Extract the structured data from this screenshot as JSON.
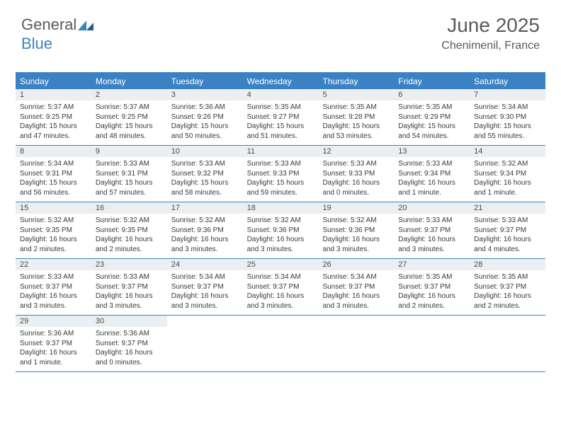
{
  "brand": {
    "part1": "General",
    "part2": "Blue"
  },
  "title": "June 2025",
  "location": "Chenimenil, France",
  "colors": {
    "accent": "#3b82c4",
    "header_bg": "#3b82c4",
    "header_text": "#ffffff",
    "daynum_bg": "#eceff1",
    "text": "#3a3a3a",
    "title_text": "#5a5a5a",
    "page_bg": "#ffffff"
  },
  "typography": {
    "title_fontsize": 28,
    "location_fontsize": 16,
    "dayheader_fontsize": 12,
    "daynum_fontsize": 11,
    "body_fontsize": 10
  },
  "day_names": [
    "Sunday",
    "Monday",
    "Tuesday",
    "Wednesday",
    "Thursday",
    "Friday",
    "Saturday"
  ],
  "weeks": [
    [
      {
        "n": "1",
        "sr": "Sunrise: 5:37 AM",
        "ss": "Sunset: 9:25 PM",
        "dl": "Daylight: 15 hours and 47 minutes."
      },
      {
        "n": "2",
        "sr": "Sunrise: 5:37 AM",
        "ss": "Sunset: 9:25 PM",
        "dl": "Daylight: 15 hours and 48 minutes."
      },
      {
        "n": "3",
        "sr": "Sunrise: 5:36 AM",
        "ss": "Sunset: 9:26 PM",
        "dl": "Daylight: 15 hours and 50 minutes."
      },
      {
        "n": "4",
        "sr": "Sunrise: 5:35 AM",
        "ss": "Sunset: 9:27 PM",
        "dl": "Daylight: 15 hours and 51 minutes."
      },
      {
        "n": "5",
        "sr": "Sunrise: 5:35 AM",
        "ss": "Sunset: 9:28 PM",
        "dl": "Daylight: 15 hours and 53 minutes."
      },
      {
        "n": "6",
        "sr": "Sunrise: 5:35 AM",
        "ss": "Sunset: 9:29 PM",
        "dl": "Daylight: 15 hours and 54 minutes."
      },
      {
        "n": "7",
        "sr": "Sunrise: 5:34 AM",
        "ss": "Sunset: 9:30 PM",
        "dl": "Daylight: 15 hours and 55 minutes."
      }
    ],
    [
      {
        "n": "8",
        "sr": "Sunrise: 5:34 AM",
        "ss": "Sunset: 9:31 PM",
        "dl": "Daylight: 15 hours and 56 minutes."
      },
      {
        "n": "9",
        "sr": "Sunrise: 5:33 AM",
        "ss": "Sunset: 9:31 PM",
        "dl": "Daylight: 15 hours and 57 minutes."
      },
      {
        "n": "10",
        "sr": "Sunrise: 5:33 AM",
        "ss": "Sunset: 9:32 PM",
        "dl": "Daylight: 15 hours and 58 minutes."
      },
      {
        "n": "11",
        "sr": "Sunrise: 5:33 AM",
        "ss": "Sunset: 9:33 PM",
        "dl": "Daylight: 15 hours and 59 minutes."
      },
      {
        "n": "12",
        "sr": "Sunrise: 5:33 AM",
        "ss": "Sunset: 9:33 PM",
        "dl": "Daylight: 16 hours and 0 minutes."
      },
      {
        "n": "13",
        "sr": "Sunrise: 5:33 AM",
        "ss": "Sunset: 9:34 PM",
        "dl": "Daylight: 16 hours and 1 minute."
      },
      {
        "n": "14",
        "sr": "Sunrise: 5:32 AM",
        "ss": "Sunset: 9:34 PM",
        "dl": "Daylight: 16 hours and 1 minute."
      }
    ],
    [
      {
        "n": "15",
        "sr": "Sunrise: 5:32 AM",
        "ss": "Sunset: 9:35 PM",
        "dl": "Daylight: 16 hours and 2 minutes."
      },
      {
        "n": "16",
        "sr": "Sunrise: 5:32 AM",
        "ss": "Sunset: 9:35 PM",
        "dl": "Daylight: 16 hours and 2 minutes."
      },
      {
        "n": "17",
        "sr": "Sunrise: 5:32 AM",
        "ss": "Sunset: 9:36 PM",
        "dl": "Daylight: 16 hours and 3 minutes."
      },
      {
        "n": "18",
        "sr": "Sunrise: 5:32 AM",
        "ss": "Sunset: 9:36 PM",
        "dl": "Daylight: 16 hours and 3 minutes."
      },
      {
        "n": "19",
        "sr": "Sunrise: 5:32 AM",
        "ss": "Sunset: 9:36 PM",
        "dl": "Daylight: 16 hours and 3 minutes."
      },
      {
        "n": "20",
        "sr": "Sunrise: 5:33 AM",
        "ss": "Sunset: 9:37 PM",
        "dl": "Daylight: 16 hours and 3 minutes."
      },
      {
        "n": "21",
        "sr": "Sunrise: 5:33 AM",
        "ss": "Sunset: 9:37 PM",
        "dl": "Daylight: 16 hours and 4 minutes."
      }
    ],
    [
      {
        "n": "22",
        "sr": "Sunrise: 5:33 AM",
        "ss": "Sunset: 9:37 PM",
        "dl": "Daylight: 16 hours and 3 minutes."
      },
      {
        "n": "23",
        "sr": "Sunrise: 5:33 AM",
        "ss": "Sunset: 9:37 PM",
        "dl": "Daylight: 16 hours and 3 minutes."
      },
      {
        "n": "24",
        "sr": "Sunrise: 5:34 AM",
        "ss": "Sunset: 9:37 PM",
        "dl": "Daylight: 16 hours and 3 minutes."
      },
      {
        "n": "25",
        "sr": "Sunrise: 5:34 AM",
        "ss": "Sunset: 9:37 PM",
        "dl": "Daylight: 16 hours and 3 minutes."
      },
      {
        "n": "26",
        "sr": "Sunrise: 5:34 AM",
        "ss": "Sunset: 9:37 PM",
        "dl": "Daylight: 16 hours and 3 minutes."
      },
      {
        "n": "27",
        "sr": "Sunrise: 5:35 AM",
        "ss": "Sunset: 9:37 PM",
        "dl": "Daylight: 16 hours and 2 minutes."
      },
      {
        "n": "28",
        "sr": "Sunrise: 5:35 AM",
        "ss": "Sunset: 9:37 PM",
        "dl": "Daylight: 16 hours and 2 minutes."
      }
    ],
    [
      {
        "n": "29",
        "sr": "Sunrise: 5:36 AM",
        "ss": "Sunset: 9:37 PM",
        "dl": "Daylight: 16 hours and 1 minute."
      },
      {
        "n": "30",
        "sr": "Sunrise: 5:36 AM",
        "ss": "Sunset: 9:37 PM",
        "dl": "Daylight: 16 hours and 0 minutes."
      },
      null,
      null,
      null,
      null,
      null
    ]
  ]
}
